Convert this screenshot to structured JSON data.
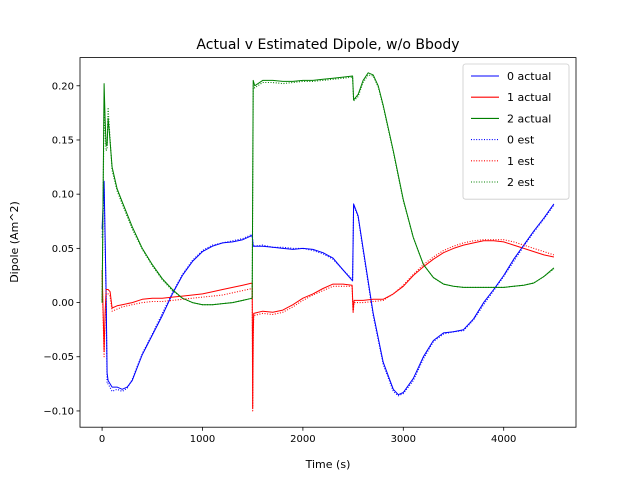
{
  "chart_data": {
    "type": "line",
    "title": "Actual v Estimated Dipole, w/o Bbody",
    "xlabel": "Time (s)",
    "ylabel": "Dipole (Am^2)",
    "xlim": [
      -220,
      4720
    ],
    "ylim": [
      -0.115,
      0.226
    ],
    "xticks": [
      0,
      1000,
      2000,
      3000,
      4000
    ],
    "xtick_labels": [
      "0",
      "1000",
      "2000",
      "3000",
      "4000"
    ],
    "yticks": [
      -0.1,
      -0.05,
      0.0,
      0.05,
      0.1,
      0.15,
      0.2
    ],
    "ytick_labels": [
      "−0.10",
      "−0.05",
      "0.00",
      "0.05",
      "0.10",
      "0.15",
      "0.20"
    ],
    "grid": false,
    "legend_position": "top-right",
    "series": [
      {
        "name": "0 actual",
        "color": "#0000ff",
        "style": "solid",
        "x": [
          0,
          20,
          40,
          50,
          60,
          100,
          150,
          200,
          250,
          300,
          350,
          400,
          500,
          600,
          700,
          800,
          900,
          1000,
          1100,
          1200,
          1300,
          1400,
          1495,
          1505,
          1600,
          1700,
          1800,
          1900,
          2000,
          2100,
          2200,
          2300,
          2400,
          2495,
          2505,
          2550,
          2600,
          2700,
          2800,
          2900,
          2950,
          3000,
          3100,
          3200,
          3300,
          3400,
          3500,
          3600,
          3700,
          3800,
          3900,
          4000,
          4100,
          4200,
          4300,
          4400,
          4500
        ],
        "y": [
          0.068,
          0.112,
          0.01,
          -0.065,
          -0.072,
          -0.078,
          -0.078,
          -0.08,
          -0.078,
          -0.072,
          -0.06,
          -0.048,
          -0.03,
          -0.012,
          0.008,
          0.025,
          0.038,
          0.047,
          0.052,
          0.055,
          0.056,
          0.058,
          0.062,
          0.052,
          0.052,
          0.051,
          0.05,
          0.049,
          0.05,
          0.049,
          0.046,
          0.041,
          0.03,
          0.02,
          0.091,
          0.08,
          0.05,
          -0.01,
          -0.055,
          -0.08,
          -0.085,
          -0.083,
          -0.07,
          -0.05,
          -0.035,
          -0.028,
          -0.027,
          -0.025,
          -0.015,
          0.0,
          0.012,
          0.025,
          0.04,
          0.053,
          0.066,
          0.078,
          0.091
        ]
      },
      {
        "name": "1 actual",
        "color": "#ff0000",
        "style": "solid",
        "x": [
          0,
          20,
          30,
          40,
          60,
          80,
          100,
          150,
          200,
          300,
          400,
          500,
          600,
          700,
          800,
          900,
          1000,
          1100,
          1200,
          1300,
          1400,
          1495,
          1500,
          1505,
          1510,
          1600,
          1700,
          1800,
          1900,
          2000,
          2100,
          2200,
          2300,
          2400,
          2490,
          2500,
          2510,
          2600,
          2700,
          2800,
          2900,
          3000,
          3100,
          3200,
          3300,
          3400,
          3500,
          3600,
          3700,
          3800,
          3900,
          4000,
          4100,
          4200,
          4300,
          4400,
          4500
        ],
        "y": [
          0.03,
          -0.045,
          -0.01,
          0.012,
          0.012,
          0.01,
          -0.005,
          -0.003,
          -0.002,
          0.0,
          0.003,
          0.004,
          0.004,
          0.005,
          0.006,
          0.007,
          0.008,
          0.01,
          0.012,
          0.014,
          0.016,
          0.018,
          -0.097,
          -0.03,
          -0.01,
          -0.008,
          -0.009,
          -0.007,
          -0.002,
          0.004,
          0.008,
          0.013,
          0.017,
          0.017,
          0.016,
          -0.008,
          0.002,
          0.002,
          0.003,
          0.003,
          0.008,
          0.015,
          0.025,
          0.033,
          0.04,
          0.046,
          0.05,
          0.053,
          0.055,
          0.057,
          0.057,
          0.056,
          0.053,
          0.05,
          0.047,
          0.044,
          0.042
        ]
      },
      {
        "name": "2 actual",
        "color": "#008000",
        "style": "solid",
        "x": [
          0,
          20,
          30,
          40,
          50,
          60,
          70,
          100,
          150,
          200,
          300,
          400,
          500,
          600,
          700,
          800,
          900,
          1000,
          1100,
          1200,
          1300,
          1400,
          1495,
          1505,
          1520,
          1600,
          1700,
          1800,
          1900,
          2000,
          2100,
          2200,
          2300,
          2400,
          2495,
          2505,
          2550,
          2600,
          2650,
          2700,
          2750,
          2800,
          2900,
          3000,
          3100,
          3200,
          3300,
          3400,
          3500,
          3600,
          3700,
          3800,
          3900,
          4000,
          4100,
          4200,
          4300,
          4400,
          4500
        ],
        "y": [
          0.0,
          0.202,
          0.17,
          0.145,
          0.145,
          0.17,
          0.16,
          0.125,
          0.105,
          0.093,
          0.07,
          0.05,
          0.035,
          0.022,
          0.012,
          0.004,
          0.0,
          -0.002,
          -0.002,
          -0.001,
          0.0,
          0.002,
          0.004,
          0.205,
          0.2,
          0.205,
          0.205,
          0.204,
          0.204,
          0.205,
          0.205,
          0.206,
          0.207,
          0.208,
          0.209,
          0.187,
          0.192,
          0.205,
          0.212,
          0.21,
          0.2,
          0.182,
          0.14,
          0.095,
          0.06,
          0.035,
          0.023,
          0.017,
          0.015,
          0.014,
          0.014,
          0.014,
          0.014,
          0.014,
          0.015,
          0.016,
          0.018,
          0.024,
          0.032
        ]
      },
      {
        "name": "0 est",
        "color": "#0000ff",
        "style": "dotted",
        "x": [
          0,
          20,
          40,
          50,
          60,
          100,
          150,
          200,
          250,
          300,
          350,
          400,
          500,
          600,
          700,
          800,
          900,
          1000,
          1100,
          1200,
          1300,
          1400,
          1495,
          1505,
          1600,
          1700,
          1800,
          1900,
          2000,
          2100,
          2200,
          2300,
          2400,
          2495,
          2505,
          2550,
          2600,
          2700,
          2800,
          2900,
          2950,
          3000,
          3100,
          3200,
          3300,
          3400,
          3500,
          3600,
          3700,
          3800,
          3900,
          4000,
          4100,
          4200,
          4300,
          4400,
          4500
        ],
        "y": [
          0.06,
          0.105,
          0.005,
          -0.075,
          -0.075,
          -0.082,
          -0.08,
          -0.082,
          -0.079,
          -0.071,
          -0.059,
          -0.047,
          -0.029,
          -0.01,
          0.009,
          0.026,
          0.039,
          0.048,
          0.053,
          0.055,
          0.057,
          0.059,
          0.063,
          0.052,
          0.053,
          0.051,
          0.051,
          0.05,
          0.05,
          0.048,
          0.045,
          0.04,
          0.03,
          0.021,
          0.09,
          0.079,
          0.048,
          -0.012,
          -0.057,
          -0.082,
          -0.086,
          -0.084,
          -0.072,
          -0.052,
          -0.036,
          -0.029,
          -0.027,
          -0.026,
          -0.016,
          -0.002,
          0.011,
          0.024,
          0.038,
          0.052,
          0.065,
          0.077,
          0.09
        ]
      },
      {
        "name": "1 est",
        "color": "#ff0000",
        "style": "dotted",
        "x": [
          0,
          20,
          30,
          40,
          60,
          80,
          100,
          150,
          200,
          300,
          400,
          500,
          600,
          700,
          800,
          900,
          1000,
          1100,
          1200,
          1300,
          1400,
          1495,
          1500,
          1505,
          1510,
          1600,
          1700,
          1800,
          1900,
          2000,
          2100,
          2200,
          2300,
          2400,
          2490,
          2500,
          2510,
          2600,
          2700,
          2800,
          2900,
          3000,
          3100,
          3200,
          3300,
          3400,
          3500,
          3600,
          3700,
          3800,
          3900,
          4000,
          4100,
          4200,
          4300,
          4400,
          4500
        ],
        "y": [
          0.025,
          -0.05,
          -0.015,
          0.008,
          0.008,
          0.006,
          -0.008,
          -0.006,
          -0.004,
          -0.002,
          0.0,
          0.001,
          0.001,
          0.002,
          0.003,
          0.004,
          0.005,
          0.006,
          0.007,
          0.009,
          0.011,
          0.013,
          -0.1,
          -0.035,
          -0.012,
          -0.01,
          -0.011,
          -0.009,
          -0.004,
          0.002,
          0.007,
          0.011,
          0.015,
          0.015,
          0.015,
          -0.01,
          0.0,
          0.0,
          0.001,
          0.002,
          0.008,
          0.016,
          0.026,
          0.035,
          0.042,
          0.048,
          0.052,
          0.055,
          0.057,
          0.058,
          0.058,
          0.058,
          0.056,
          0.053,
          0.05,
          0.047,
          0.044
        ]
      },
      {
        "name": "2 est",
        "color": "#008000",
        "style": "dotted",
        "x": [
          0,
          20,
          30,
          40,
          50,
          60,
          70,
          100,
          150,
          200,
          300,
          400,
          500,
          600,
          700,
          800,
          900,
          1000,
          1100,
          1200,
          1300,
          1400,
          1495,
          1505,
          1520,
          1600,
          1700,
          1800,
          1900,
          2000,
          2100,
          2200,
          2300,
          2400,
          2495,
          2505,
          2550,
          2600,
          2650,
          2700,
          2750,
          2800,
          2900,
          3000,
          3100,
          3200,
          3300,
          3400,
          3500,
          3600,
          3700,
          3800,
          3900,
          4000,
          4100,
          4200,
          4300,
          4400,
          4500
        ],
        "y": [
          0.0,
          0.185,
          0.16,
          0.14,
          0.142,
          0.18,
          0.165,
          0.122,
          0.103,
          0.091,
          0.068,
          0.049,
          0.034,
          0.021,
          0.011,
          0.004,
          0.0,
          -0.002,
          -0.002,
          -0.001,
          0.0,
          0.002,
          0.004,
          0.2,
          0.198,
          0.203,
          0.203,
          0.202,
          0.203,
          0.204,
          0.204,
          0.205,
          0.206,
          0.207,
          0.208,
          0.186,
          0.19,
          0.203,
          0.21,
          0.209,
          0.199,
          0.181,
          0.139,
          0.094,
          0.06,
          0.035,
          0.023,
          0.017,
          0.015,
          0.014,
          0.014,
          0.014,
          0.014,
          0.014,
          0.015,
          0.016,
          0.018,
          0.024,
          0.031
        ]
      }
    ]
  }
}
